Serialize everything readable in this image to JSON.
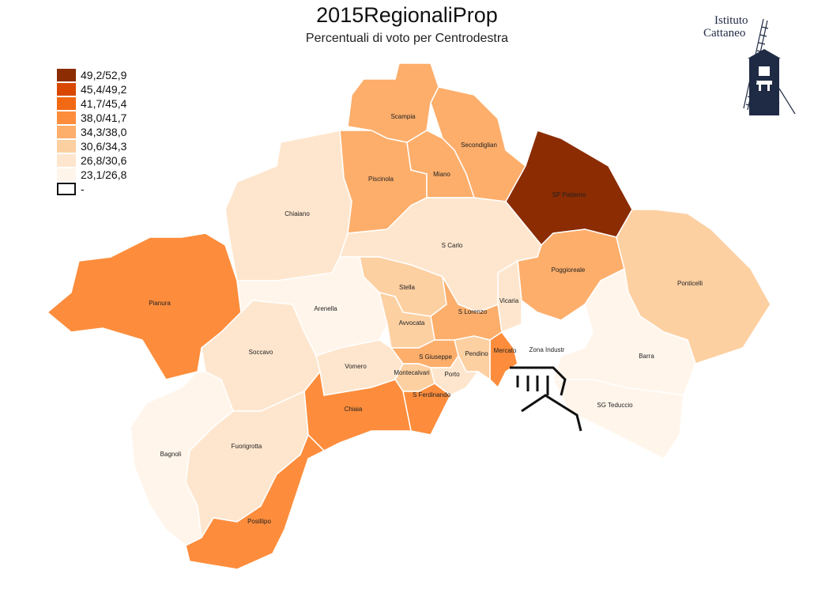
{
  "title": "2015RegionaliProp",
  "subtitle": "Percentuali di voto per Centrodestra",
  "logo": {
    "line1": "Istituto",
    "line2": "Cattaneo"
  },
  "legend": [
    {
      "label": "49,2/52,9",
      "color": "#8b2c02"
    },
    {
      "label": "45,4/49,2",
      "color": "#d94801"
    },
    {
      "label": "41,7/45,4",
      "color": "#f16913"
    },
    {
      "label": "38,0/41,7",
      "color": "#fd8d3c"
    },
    {
      "label": "34,3/38,0",
      "color": "#fdae6b"
    },
    {
      "label": "30,6/34,3",
      "color": "#fdd0a2"
    },
    {
      "label": "26,8/30,6",
      "color": "#fee6ce"
    },
    {
      "label": "23,1/26,8",
      "color": "#fff5eb"
    },
    {
      "label": "-",
      "color": "#ffffff"
    }
  ],
  "quarters": [
    {
      "name": "Scampia",
      "color": "#fdae6b"
    },
    {
      "name": "Secondiglian",
      "color": "#fdae6b"
    },
    {
      "name": "Piscinola",
      "color": "#fdae6b"
    },
    {
      "name": "Miano",
      "color": "#fdae6b"
    },
    {
      "name": "SP Patierno",
      "color": "#8b2c02"
    },
    {
      "name": "Chiaiano",
      "color": "#fee6ce"
    },
    {
      "name": "S Carlo",
      "color": "#fee6ce"
    },
    {
      "name": "Poggioreale",
      "color": "#fdae6b"
    },
    {
      "name": "Ponticelli",
      "color": "#fdd0a2"
    },
    {
      "name": "Pianura",
      "color": "#fd8d3c"
    },
    {
      "name": "Stella",
      "color": "#fdd0a2"
    },
    {
      "name": "Vicaria",
      "color": "#fee6ce"
    },
    {
      "name": "Arenella",
      "color": "#fff5eb"
    },
    {
      "name": "S Lorenzo",
      "color": "#fdae6b"
    },
    {
      "name": "Avvocata",
      "color": "#fdd0a2"
    },
    {
      "name": "Mercato",
      "color": "#fd8d3c"
    },
    {
      "name": "Zona Industr",
      "color": "#ffffff"
    },
    {
      "name": "Soccavo",
      "color": "#fee6ce"
    },
    {
      "name": "S Giuseppe",
      "color": "#fdae6b"
    },
    {
      "name": "Pendino",
      "color": "#fdd0a2"
    },
    {
      "name": "Barra",
      "color": "#fff5eb"
    },
    {
      "name": "Vomero",
      "color": "#fee6ce"
    },
    {
      "name": "Montecalvari",
      "color": "#fdd0a2"
    },
    {
      "name": "Porto",
      "color": "#fee6ce"
    },
    {
      "name": "S Ferdinando",
      "color": "#fd8d3c"
    },
    {
      "name": "Chiaia",
      "color": "#fd8d3c"
    },
    {
      "name": "SG Teduccio",
      "color": "#fff5eb"
    },
    {
      "name": "Bagnoli",
      "color": "#fff5eb"
    },
    {
      "name": "Fuorigrotta",
      "color": "#fee6ce"
    },
    {
      "name": "Posillipo",
      "color": "#fd8d3c"
    }
  ]
}
